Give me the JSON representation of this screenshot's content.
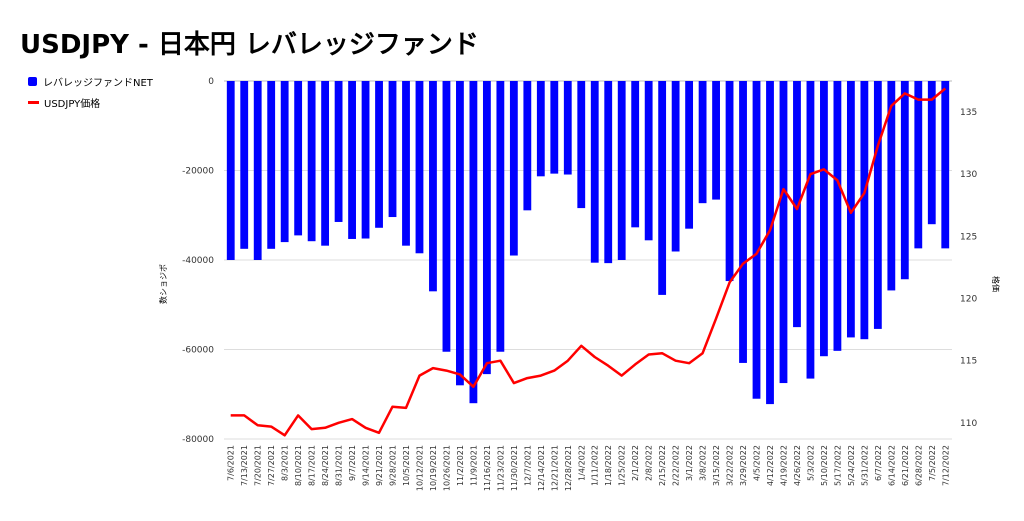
{
  "chart_data": {
    "type": "bar",
    "title": "USDJPY - 日本円 レバレッジファンド",
    "ylabel_left": "数ショジポ",
    "ylabel_right": "格価",
    "ylim_left": [
      -80000,
      0
    ],
    "yticks_left": [
      "0",
      "-20000",
      "-40000",
      "-60000",
      "-80000"
    ],
    "ylim_right": [
      108.7,
      137.5
    ],
    "yticks_right": [
      "110",
      "115",
      "120",
      "125",
      "130",
      "135"
    ],
    "legend_position": "top-left",
    "grid": true,
    "categories": [
      "7/6/2021",
      "7/13/2021",
      "7/20/2021",
      "7/27/2021",
      "8/3/2021",
      "8/10/2021",
      "8/17/2021",
      "8/24/2021",
      "8/31/2021",
      "9/7/2021",
      "9/14/2021",
      "9/21/2021",
      "9/28/2021",
      "10/5/2021",
      "10/12/2021",
      "10/19/2021",
      "10/26/2021",
      "11/2/2021",
      "11/9/2021",
      "11/16/2021",
      "11/23/2021",
      "11/30/2021",
      "12/7/2021",
      "12/14/2021",
      "12/21/2021",
      "12/28/2021",
      "1/4/2022",
      "1/11/2022",
      "1/18/2022",
      "1/25/2022",
      "2/1/2022",
      "2/8/2022",
      "2/15/2022",
      "2/22/2022",
      "3/1/2022",
      "3/8/2022",
      "3/15/2022",
      "3/22/2022",
      "3/29/2022",
      "4/5/2022",
      "4/12/2022",
      "4/19/2022",
      "4/26/2022",
      "5/3/2022",
      "5/10/2022",
      "5/17/2022",
      "5/24/2022",
      "5/31/2022",
      "6/7/2022",
      "6/14/2022",
      "6/21/2022",
      "6/28/2022",
      "7/5/2022",
      "7/12/2022"
    ],
    "series": [
      {
        "name": "レバレッジファンドNET",
        "type": "bar",
        "color": "#0000ff",
        "axis": "left",
        "values": [
          -40000,
          -37500,
          -40000,
          -37500,
          -36000,
          -34500,
          -35800,
          -36800,
          -31500,
          -35300,
          -35200,
          -32800,
          -30400,
          -36800,
          -38500,
          -47000,
          -60500,
          -68000,
          -72000,
          -65500,
          -60500,
          -39000,
          -28900,
          -21300,
          -20700,
          -20900,
          -28400,
          -40600,
          -40700,
          -40000,
          -32700,
          -35600,
          -47800,
          -38100,
          -33000,
          -27300,
          -26500,
          -44700,
          -63000,
          -71000,
          -72200,
          -67500,
          -55000,
          -66500,
          -61500,
          -60300,
          -57300,
          -57700,
          -55400,
          -46800,
          -44300,
          -37400,
          -32000,
          -37400
        ]
      },
      {
        "name": "USDJPY価格",
        "type": "line",
        "color": "#ff0000",
        "axis": "right",
        "values": [
          110.6,
          110.6,
          109.8,
          109.7,
          109.0,
          110.6,
          109.5,
          109.6,
          110.0,
          110.3,
          109.6,
          109.2,
          111.3,
          111.2,
          113.8,
          114.4,
          114.2,
          113.9,
          112.9,
          114.8,
          115.0,
          113.2,
          113.6,
          113.8,
          114.2,
          115.0,
          116.2,
          115.3,
          114.6,
          113.8,
          114.7,
          115.5,
          115.6,
          115.0,
          114.8,
          115.6,
          118.4,
          121.3,
          122.8,
          123.6,
          125.5,
          128.8,
          127.2,
          130.0,
          130.4,
          129.5,
          126.9,
          128.5,
          132.3,
          135.5,
          136.5,
          136.0,
          136.0,
          136.9
        ]
      }
    ]
  }
}
